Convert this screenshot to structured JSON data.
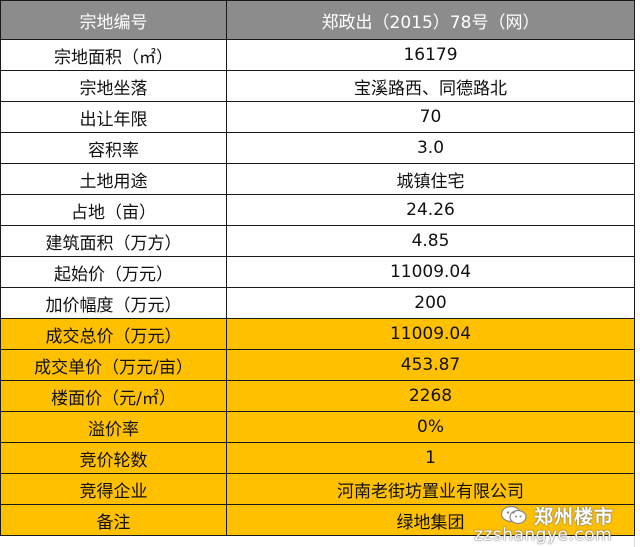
{
  "table": {
    "header": {
      "label": "宗地编号",
      "value": "郑政出（2015）78号（网）"
    },
    "rows": [
      {
        "label": "宗地面积（㎡）",
        "value": "16179",
        "highlight": false
      },
      {
        "label": "宗地坐落",
        "value": "宝溪路西、同德路北",
        "highlight": false
      },
      {
        "label": "出让年限",
        "value": "70",
        "highlight": false
      },
      {
        "label": "容积率",
        "value": "3.0",
        "highlight": false
      },
      {
        "label": "土地用途",
        "value": "城镇住宅",
        "highlight": false
      },
      {
        "label": "占地（亩）",
        "value": "24.26",
        "highlight": false
      },
      {
        "label": "建筑面积（万方）",
        "value": "4.85",
        "highlight": false
      },
      {
        "label": "起始价（万元）",
        "value": "11009.04",
        "highlight": false
      },
      {
        "label": "加价幅度（万元）",
        "value": "200",
        "highlight": false
      },
      {
        "label": "成交总价（万元）",
        "value": "11009.04",
        "highlight": true
      },
      {
        "label": "成交单价（万元/亩）",
        "value": "453.87",
        "highlight": true
      },
      {
        "label": "楼面价（元/㎡）",
        "value": "2268",
        "highlight": true
      },
      {
        "label": "溢价率",
        "value": "0%",
        "highlight": true
      },
      {
        "label": "竞价轮数",
        "value": "1",
        "highlight": true
      },
      {
        "label": "竞得企业",
        "value": "河南老街坊置业有限公司",
        "highlight": true
      },
      {
        "label": "备注",
        "value": "绿地集团",
        "highlight": true
      }
    ]
  },
  "colors": {
    "header_bg": "#8c8c8c",
    "highlight_bg": "#ffc000"
  },
  "watermark": {
    "icon": "wechat-icon",
    "title": "郑州楼市",
    "url": "zzshangye.com"
  }
}
